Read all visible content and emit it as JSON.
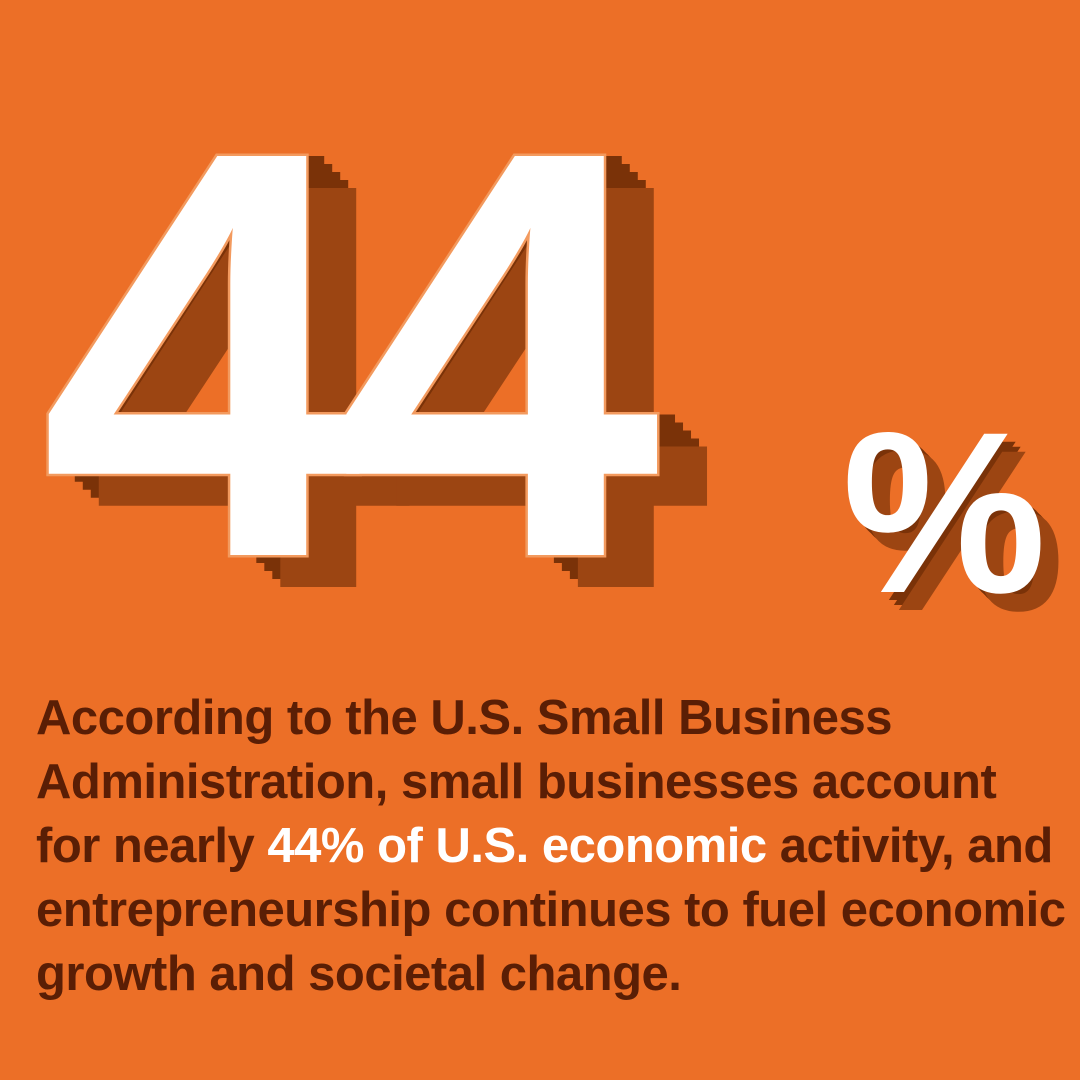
{
  "stat": {
    "number": "44",
    "unit": "%"
  },
  "description": {
    "before_highlight": "According to the U.S. Small Business Administration, small businesses account for nearly ",
    "highlight": "44% of U.S. economic",
    "after_highlight": " activity, and entrepreneurship continues to fuel economic growth and societal change."
  },
  "colors": {
    "background": "#ec6f27",
    "numeral_face": "#ffffff",
    "numeral_extrusion": "#9c4512",
    "numeral_extrusion_dark": "#5a1e05",
    "body_text": "#5a1e05",
    "highlight_text": "#ffffff"
  }
}
